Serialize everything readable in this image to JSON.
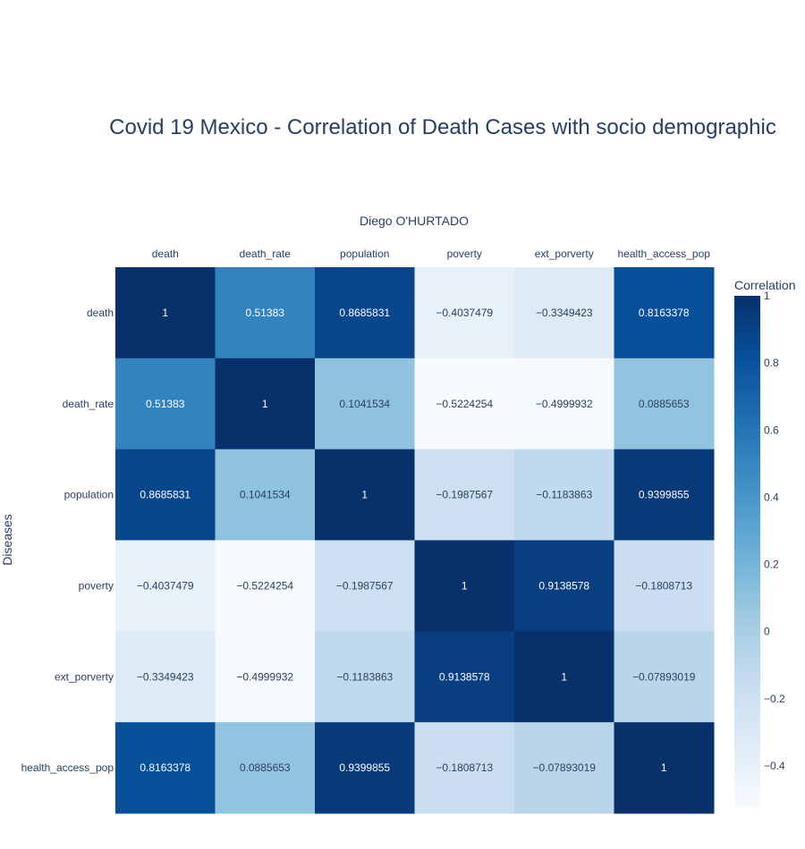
{
  "chart_data": {
    "type": "heatmap",
    "title": "Covid 19 Mexico - Correlation of Death Cases with socio demographic",
    "subtitle": "Diego O'HURTADO",
    "ylabel": "Diseases",
    "x_categories": [
      "death",
      "death_rate",
      "population",
      "poverty",
      "ext_porverty",
      "health_access_pop"
    ],
    "y_categories": [
      "death",
      "death_rate",
      "population",
      "poverty",
      "ext_porverty",
      "health_access_pop"
    ],
    "z": [
      [
        1,
        0.51383,
        0.8685831,
        -0.4037479,
        -0.3349423,
        0.8163378
      ],
      [
        0.51383,
        1,
        0.1041534,
        -0.5224254,
        -0.4999932,
        0.0885653
      ],
      [
        0.8685831,
        0.1041534,
        1,
        -0.1987567,
        -0.1183863,
        0.9399855
      ],
      [
        -0.4037479,
        -0.5224254,
        -0.1987567,
        1,
        0.9138578,
        -0.1808713
      ],
      [
        -0.3349423,
        -0.4999932,
        -0.1183863,
        0.9138578,
        1,
        -0.07893019
      ],
      [
        0.8163378,
        0.0885653,
        0.9399855,
        -0.1808713,
        -0.07893019,
        1
      ]
    ],
    "text": [
      [
        "1",
        "0.51383",
        "0.8685831",
        "−0.4037479",
        "−0.3349423",
        "0.8163378"
      ],
      [
        "0.51383",
        "1",
        "0.1041534",
        "−0.5224254",
        "−0.4999932",
        "0.0885653"
      ],
      [
        "0.8685831",
        "0.1041534",
        "1",
        "−0.1987567",
        "−0.1183863",
        "0.9399855"
      ],
      [
        "−0.4037479",
        "−0.5224254",
        "−0.1987567",
        "1",
        "0.9138578",
        "−0.1808713"
      ],
      [
        "−0.3349423",
        "−0.4999932",
        "−0.1183863",
        "0.9138578",
        "1",
        "−0.07893019"
      ],
      [
        "0.8163378",
        "0.0885653",
        "0.9399855",
        "−0.1808713",
        "−0.07893019",
        "1"
      ]
    ],
    "zmin": -0.5224254,
    "zmax": 1,
    "colorscale": "Blues",
    "colorbar": {
      "title": "Correlation",
      "ticks": [
        1,
        0.8,
        0.6,
        0.4,
        0.2,
        0,
        -0.2,
        -0.4
      ],
      "tick_labels": [
        "1",
        "0.8",
        "0.6",
        "0.4",
        "0.2",
        "0",
        "−0.2",
        "−0.4"
      ]
    },
    "x_axis_side": "top",
    "grid": false,
    "legend": "colorbar-right"
  }
}
